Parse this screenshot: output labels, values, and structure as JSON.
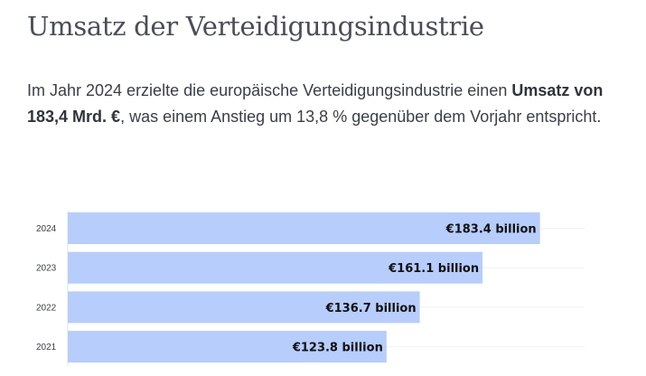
{
  "header": {
    "title": "Umsatz der Verteidigungsindustrie"
  },
  "intro": {
    "part1": "Im Jahr 2024 erzielte die europäische Verteidigungsindustrie einen ",
    "bold": "Umsatz von 183,4 Mrd. €",
    "part2": ", was einem Anstieg um 13,8 % gegenüber dem Vorjahr entspricht."
  },
  "chart_data": {
    "type": "bar",
    "orientation": "horizontal",
    "categories": [
      "2024",
      "2023",
      "2022",
      "2021"
    ],
    "values": [
      183.4,
      161.1,
      136.7,
      123.8
    ],
    "data_labels": [
      "€183.4 billion",
      "€161.1 billion",
      "€136.7 billion",
      "€123.8 billion"
    ],
    "xlim": [
      0,
      200
    ],
    "bar_color": "#b7cdfb",
    "label_color": "#111111",
    "grid": true
  }
}
